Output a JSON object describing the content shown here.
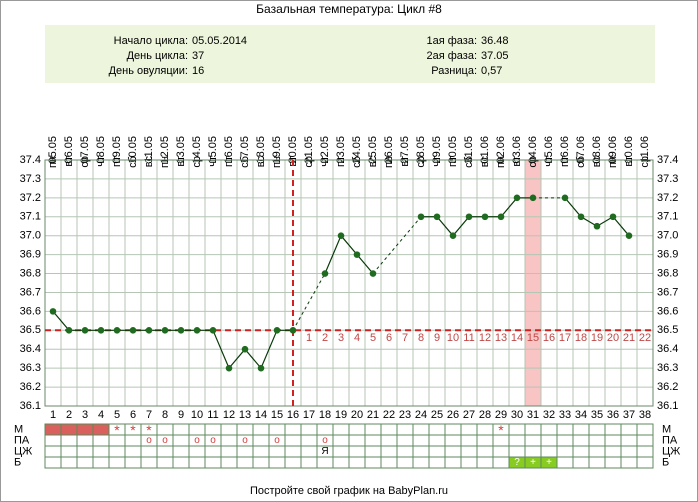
{
  "header": {
    "title": "Базальная температура: Цикл #8"
  },
  "info": {
    "left": [
      {
        "label": "Начало цикла:",
        "value": "05.05.2014"
      },
      {
        "label": "День цикла:",
        "value": "37"
      },
      {
        "label": "День овуляции:",
        "value": "16"
      }
    ],
    "right": [
      {
        "label": "1ая фаза:",
        "value": "36.48"
      },
      {
        "label": "2ая фаза:",
        "value": "37.05"
      },
      {
        "label": "Разница:",
        "value": "0,57"
      }
    ]
  },
  "chart_data": {
    "type": "line",
    "x": [
      1,
      2,
      3,
      4,
      5,
      6,
      7,
      8,
      9,
      10,
      11,
      12,
      13,
      14,
      15,
      16,
      17,
      18,
      19,
      20,
      21,
      22,
      23,
      24,
      25,
      26,
      27,
      28,
      29,
      30,
      31,
      32,
      33,
      34,
      35,
      36,
      37,
      38
    ],
    "dates": [
      "05.05",
      "06.05",
      "07.05",
      "08.05",
      "09.05",
      "10.05",
      "11.05",
      "12.05",
      "13.05",
      "14.05",
      "15.05",
      "16.05",
      "17.05",
      "18.05",
      "19.05",
      "20.05",
      "21.05",
      "22.05",
      "23.05",
      "24.05",
      "25.05",
      "26.05",
      "27.05",
      "28.05",
      "29.05",
      "30.05",
      "31.05",
      "01.06",
      "02.06",
      "03.06",
      "04.06",
      "05.06",
      "06.06",
      "07.06",
      "08.06",
      "09.06",
      "10.06",
      "11.06"
    ],
    "weekdays": [
      "пн",
      "вт",
      "ср",
      "чт",
      "пт",
      "сб",
      "вс",
      "пн",
      "вт",
      "ср",
      "чт",
      "пт",
      "сб",
      "вс",
      "пн",
      "вт",
      "ср",
      "чт",
      "пт",
      "сб",
      "вс",
      "пн",
      "вт",
      "ср",
      "чт",
      "пт",
      "сб",
      "вс",
      "пн",
      "вт",
      "ср",
      "чт",
      "пт",
      "сб",
      "вс",
      "пн",
      "вт",
      "ср"
    ],
    "values": [
      36.6,
      36.5,
      36.5,
      36.5,
      36.5,
      36.5,
      36.5,
      36.5,
      36.5,
      36.5,
      36.5,
      36.3,
      36.4,
      36.3,
      36.5,
      36.5,
      null,
      36.8,
      37.0,
      36.9,
      36.8,
      null,
      null,
      37.1,
      37.1,
      37.0,
      37.1,
      37.1,
      37.1,
      37.2,
      37.2,
      null,
      37.2,
      37.1,
      37.05,
      37.1,
      37.0,
      null
    ],
    "color": "#1f6b1f",
    "ylim": [
      36.1,
      37.4
    ],
    "yticks": [
      {
        "value": 36.1,
        "label": "36.1"
      },
      {
        "value": 36.2,
        "label": "36.2"
      },
      {
        "value": 36.3,
        "label": "36.3"
      },
      {
        "value": 36.4,
        "label": "36.4"
      },
      {
        "value": 36.5,
        "label": "36.5"
      },
      {
        "value": 36.6,
        "label": "36.6"
      },
      {
        "value": 36.7,
        "label": "36.7"
      },
      {
        "value": 36.8,
        "label": "36.8"
      },
      {
        "value": 36.9,
        "label": "36.9"
      },
      {
        "value": 37.0,
        "label": "37.0"
      },
      {
        "value": 37.1,
        "label": "37.1"
      },
      {
        "value": 37.2,
        "label": "37.2"
      },
      {
        "value": 37.3,
        "label": "37.3"
      },
      {
        "value": 37.4,
        "label": "37.4"
      }
    ],
    "grid": true,
    "coverline": 36.5,
    "ovulation_day": 16,
    "highlight_day": 31,
    "luteal_day_labels": [
      1,
      2,
      3,
      4,
      5,
      6,
      7,
      8,
      9,
      10,
      11,
      12,
      13,
      14,
      15,
      16,
      17,
      18,
      19,
      20,
      21,
      22
    ]
  },
  "table": {
    "rows": [
      {
        "label": "М",
        "cells": [
          {
            "fill": "#d9605c"
          },
          {
            "fill": "#d9605c"
          },
          {
            "fill": "#d9605c"
          },
          {
            "fill": "#d9605c"
          },
          {
            "text": "*"
          },
          {
            "text": "*"
          },
          {
            "text": "*"
          },
          null,
          null,
          null,
          null,
          null,
          null,
          null,
          null,
          null,
          null,
          null,
          null,
          null,
          null,
          null,
          null,
          null,
          null,
          null,
          null,
          null,
          {
            "text": "*"
          },
          null,
          null,
          null,
          null,
          null,
          null,
          null,
          null,
          null
        ]
      },
      {
        "label": "ПА",
        "cells": [
          null,
          null,
          null,
          null,
          null,
          null,
          {
            "text": "о"
          },
          {
            "text": "о"
          },
          null,
          {
            "text": "о"
          },
          {
            "text": "о"
          },
          null,
          {
            "text": "о"
          },
          null,
          {
            "text": "о"
          },
          null,
          null,
          {
            "text": "о"
          },
          null,
          null,
          null,
          null,
          null,
          null,
          null,
          null,
          null,
          null,
          null,
          null,
          null,
          null,
          null,
          null,
          null,
          null,
          null,
          null
        ]
      },
      {
        "label": "ЦЖ",
        "cells": [
          null,
          null,
          null,
          null,
          null,
          null,
          null,
          null,
          null,
          null,
          null,
          null,
          null,
          null,
          null,
          null,
          null,
          {
            "text": "Я"
          },
          null,
          null,
          null,
          null,
          null,
          null,
          null,
          null,
          null,
          null,
          null,
          null,
          null,
          null,
          null,
          null,
          null,
          null,
          null,
          null
        ]
      },
      {
        "label": "Б",
        "cells": [
          null,
          null,
          null,
          null,
          null,
          null,
          null,
          null,
          null,
          null,
          null,
          null,
          null,
          null,
          null,
          null,
          null,
          null,
          null,
          null,
          null,
          null,
          null,
          null,
          null,
          null,
          null,
          null,
          null,
          {
            "text": "?",
            "fill": "#88cc22"
          },
          {
            "text": "+",
            "fill": "#88cc22"
          },
          {
            "text": "+",
            "fill": "#88cc22"
          },
          null,
          null,
          null,
          null,
          null,
          null
        ]
      }
    ]
  },
  "footer": "Постройте свой график на BabyPlan.ru"
}
